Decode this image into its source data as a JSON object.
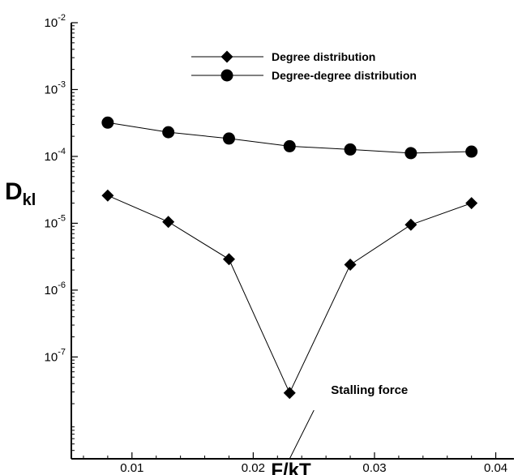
{
  "chart_data": {
    "type": "line",
    "xlabel": "F/kT",
    "ylabel": {
      "main": "D",
      "sub": "kl"
    },
    "yscale": "log",
    "xlim": [
      0.005,
      0.0415
    ],
    "ylim": [
      3e-09,
      0.01
    ],
    "x_ticks": [
      {
        "value": 0.01,
        "label": "0.01"
      },
      {
        "value": 0.02,
        "label": "0.02"
      },
      {
        "value": 0.03,
        "label": "0.03"
      },
      {
        "value": 0.04,
        "label": "0.04"
      }
    ],
    "y_ticks": [
      {
        "value": 0.01,
        "mantissa": "10",
        "exp": "-2"
      },
      {
        "value": 0.001,
        "mantissa": "10",
        "exp": "-3"
      },
      {
        "value": 0.0001,
        "mantissa": "10",
        "exp": "-4"
      },
      {
        "value": 1e-05,
        "mantissa": "10",
        "exp": "-5"
      },
      {
        "value": 1e-06,
        "mantissa": "10",
        "exp": "-6"
      },
      {
        "value": 1e-07,
        "mantissa": "10",
        "exp": "-7"
      }
    ],
    "grid": false,
    "legend_position": "top-right",
    "series": [
      {
        "name": "Degree distribution",
        "marker": "diamond",
        "x": [
          0.008,
          0.013,
          0.018,
          0.023,
          0.028,
          0.033,
          0.038
        ],
        "values": [
          2.6e-05,
          1.05e-05,
          2.9e-06,
          2.9e-08,
          2.4e-06,
          9.5e-06,
          2e-05
        ]
      },
      {
        "name": "Degree-degree distribution",
        "marker": "circle",
        "x": [
          0.008,
          0.013,
          0.018,
          0.023,
          0.028,
          0.033,
          0.038
        ],
        "values": [
          0.00032,
          0.00023,
          0.000185,
          0.000142,
          0.000127,
          0.000112,
          0.000118
        ]
      }
    ],
    "annotations": [
      {
        "text": "Stalling force",
        "x": 0.023,
        "y_start": 3e-09,
        "y_end": 1.6e-08
      }
    ],
    "colors": {
      "line": "#000000",
      "marker": "#000000",
      "background": "#ffffff"
    }
  }
}
